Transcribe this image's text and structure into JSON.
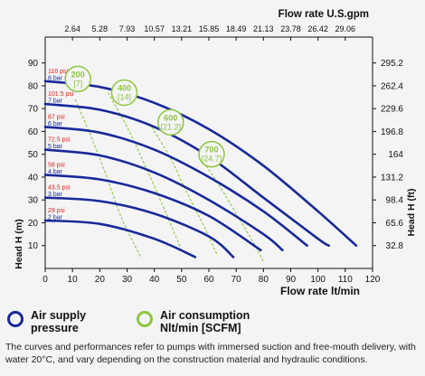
{
  "chart_data": {
    "type": "line",
    "xlabel": "Flow rate lt/min",
    "ylabel": "Head H (m)",
    "x2label": "Flow rate U.S.gpm",
    "y2label": "Head H (ft)",
    "xlim": [
      0,
      120
    ],
    "ylim": [
      0,
      95
    ],
    "x_ticks": [
      0,
      10,
      20,
      30,
      40,
      50,
      60,
      70,
      80,
      90,
      100,
      110,
      120
    ],
    "y_ticks": [
      10,
      20,
      30,
      40,
      50,
      60,
      70,
      80,
      90
    ],
    "x2_ticks": [
      "2.64",
      "5.28",
      "7.93",
      "10.57",
      "13.21",
      "15.85",
      "18.49",
      "21.13",
      "23.78",
      "26.42",
      "29.06"
    ],
    "y2_ticks": [
      "32.8",
      "65.6",
      "98.4",
      "131.2",
      "164",
      "196.8",
      "229.6",
      "262.4",
      "295.2"
    ],
    "grid": false,
    "series": [
      {
        "name": "8 bar",
        "psi": "116 psi",
        "x": [
          0,
          20,
          40,
          60,
          80,
          100,
          114
        ],
        "y": [
          82,
          79.5,
          72.5,
          61,
          45,
          25,
          10
        ]
      },
      {
        "name": "7 bar",
        "psi": "101.5 psi",
        "x": [
          0,
          20,
          40,
          60,
          80,
          100,
          104
        ],
        "y": [
          72,
          69.5,
          62,
          49,
          31,
          13,
          10
        ]
      },
      {
        "name": "6 bar",
        "psi": "87 psi",
        "x": [
          0,
          20,
          40,
          60,
          80,
          96
        ],
        "y": [
          62,
          59.5,
          52,
          40,
          25,
          10
        ]
      },
      {
        "name": "5 bar",
        "psi": "72.5 psi",
        "x": [
          0,
          20,
          40,
          60,
          80,
          87
        ],
        "y": [
          52,
          49.5,
          42,
          30,
          15,
          8
        ]
      },
      {
        "name": "4 bar",
        "psi": "58 psi",
        "x": [
          0,
          20,
          40,
          60,
          79
        ],
        "y": [
          41,
          39,
          33,
          23,
          8
        ]
      },
      {
        "name": "3 bar",
        "psi": "43.5 psi",
        "x": [
          0,
          20,
          40,
          60,
          69
        ],
        "y": [
          31,
          29.5,
          24,
          14,
          5
        ]
      },
      {
        "name": "2 bar",
        "psi": "29 psi",
        "x": [
          0,
          20,
          40,
          55
        ],
        "y": [
          21,
          19.5,
          13,
          5
        ]
      }
    ],
    "air_consumption": [
      {
        "label": "200",
        "sub": "[7]",
        "x": [
          11,
          16,
          22,
          28,
          35
        ],
        "y": [
          74,
          60,
          42,
          22,
          5
        ]
      },
      {
        "label": "400",
        "sub": "[14]",
        "x": [
          23,
          30,
          37,
          44,
          50
        ],
        "y": [
          77,
          62,
          44,
          25,
          8
        ]
      },
      {
        "label": "600",
        "sub": "[21.2]",
        "x": [
          39,
          46,
          52,
          58,
          63
        ],
        "y": [
          62,
          48,
          33,
          19,
          6
        ]
      },
      {
        "label": "700",
        "sub": "[24.7]",
        "x": [
          59,
          65,
          71,
          76,
          80
        ],
        "y": [
          45,
          34,
          22,
          12,
          3
        ]
      }
    ],
    "bubbles": [
      {
        "label": "200",
        "sub": "[7]",
        "x": 12,
        "y": 83
      },
      {
        "label": "400",
        "sub": "[14]",
        "x": 29,
        "y": 77
      },
      {
        "label": "600",
        "sub": "[21.2]",
        "x": 46,
        "y": 64
      },
      {
        "label": "700",
        "sub": "[24.7]",
        "x": 61,
        "y": 50
      }
    ]
  },
  "colors": {
    "curve": "#18299a",
    "air": "#8dc63f",
    "psi": "#e0201a",
    "axis": "#111111"
  },
  "legend": {
    "supply": "Air supply pressure",
    "consumption": "Air consumption Nlt/min [SCFM]"
  },
  "footnote": "The curves and performances refer to pumps with immersed suction and free-mouth delivery, with water 20°C, and vary depending on the construction material and hydraulic conditions."
}
